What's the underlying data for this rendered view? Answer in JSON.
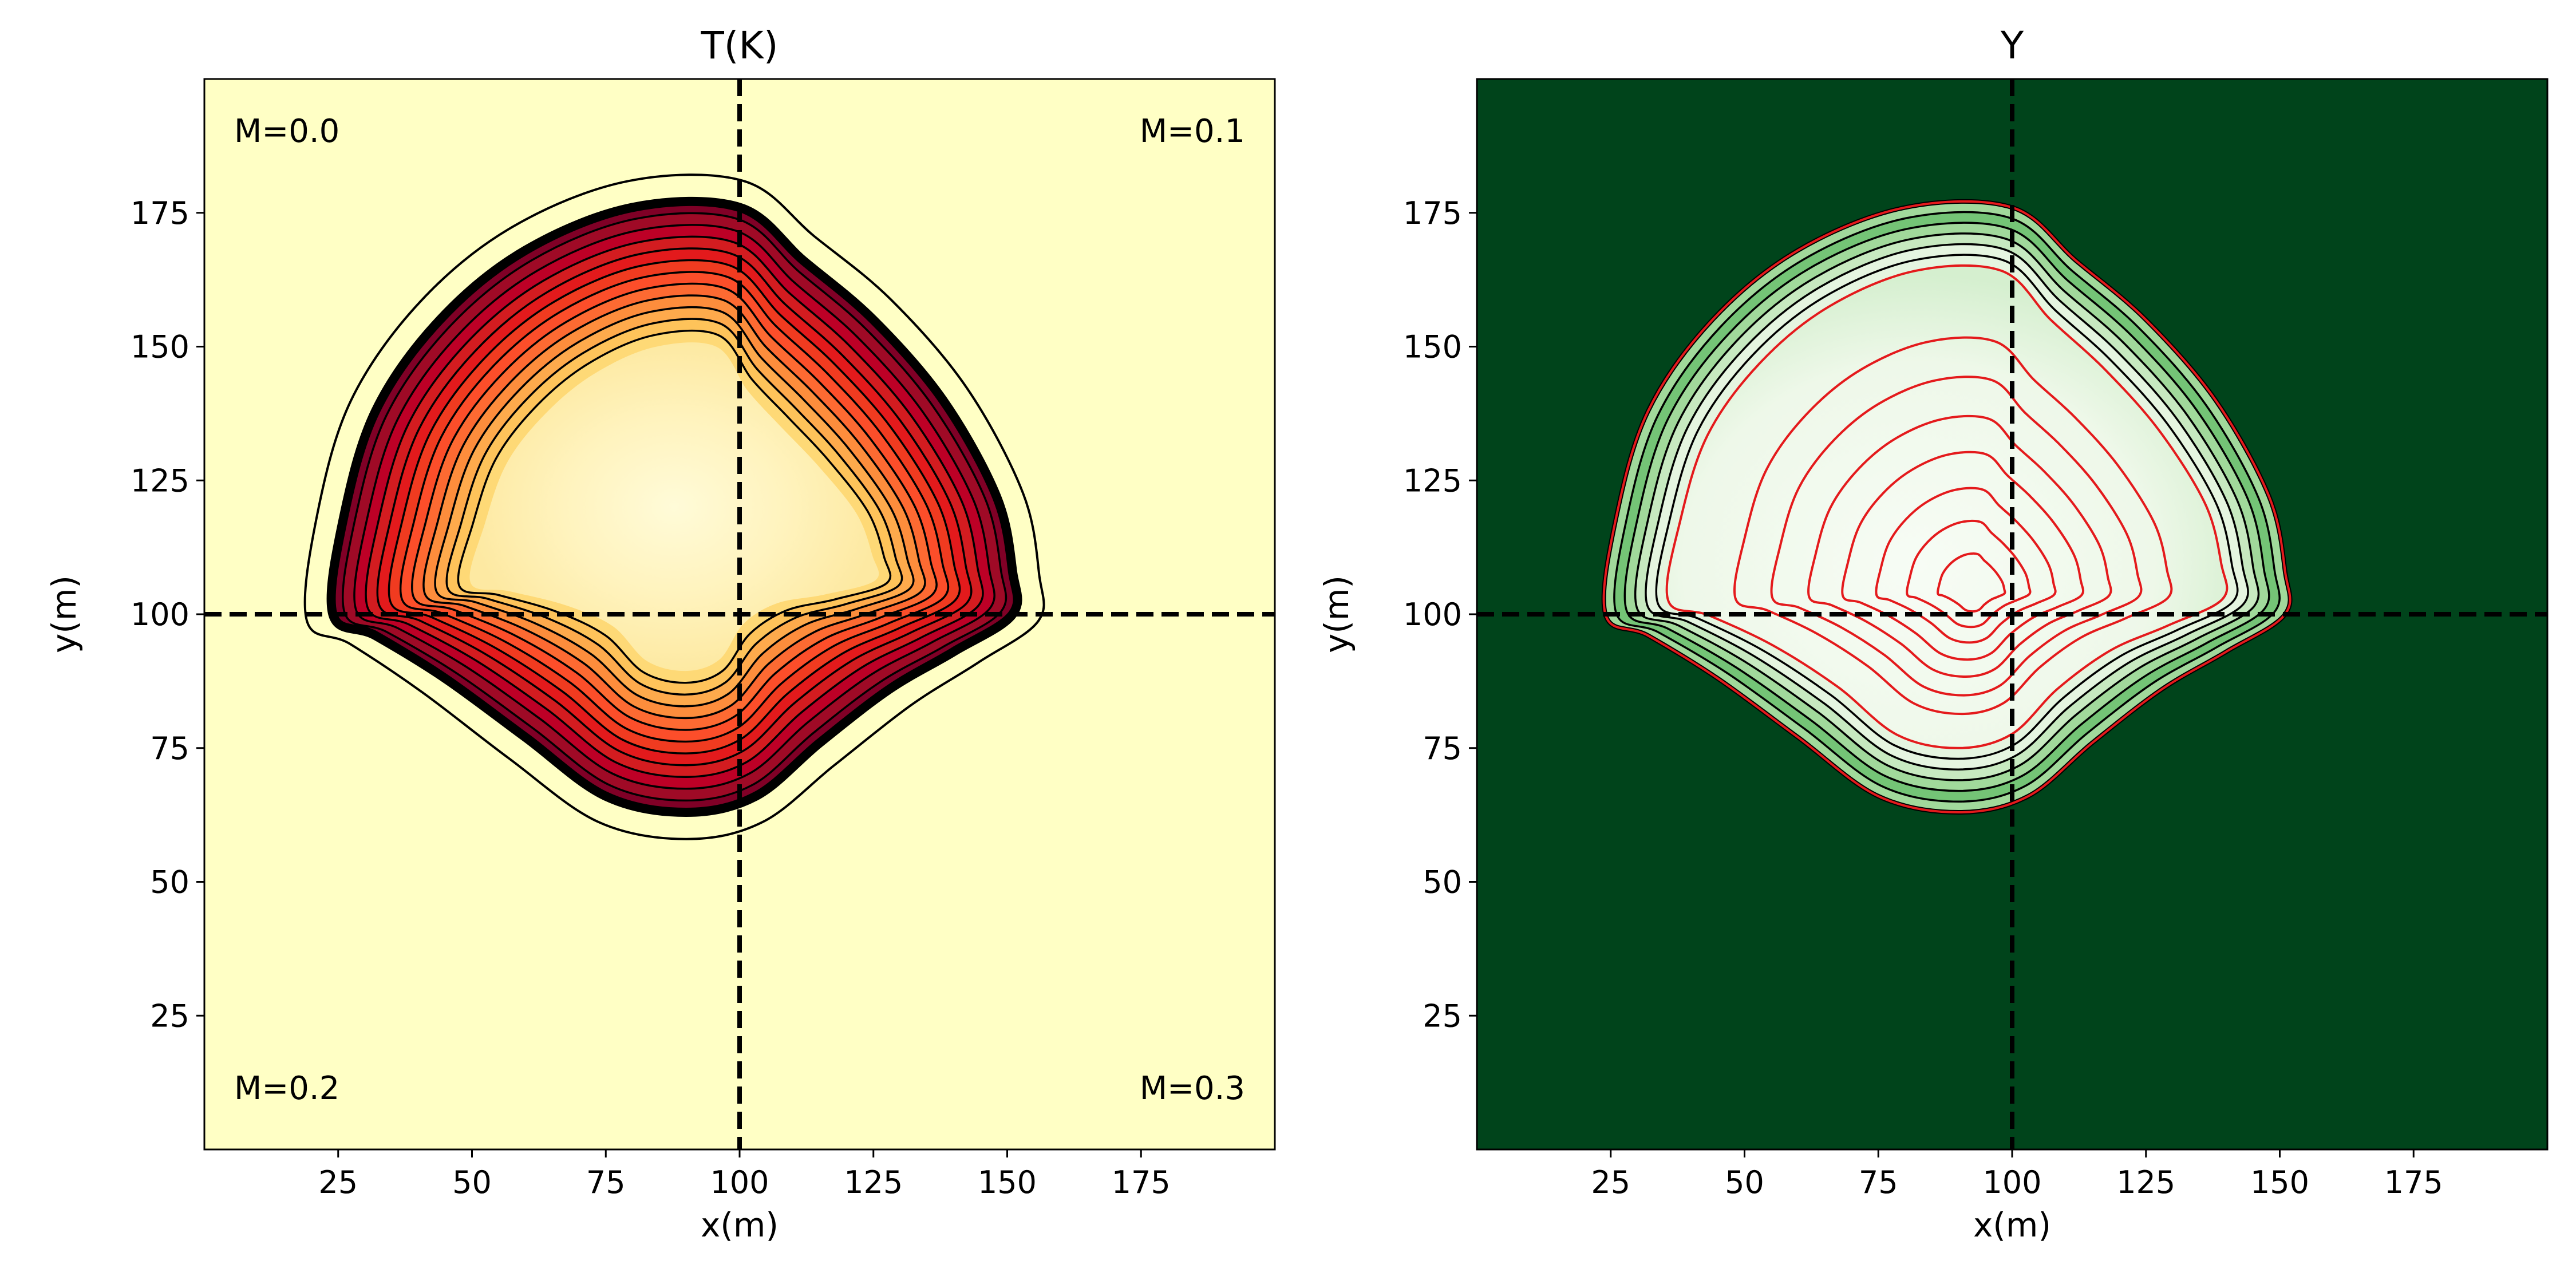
{
  "chart_data": [
    {
      "type": "heatmap",
      "title": "T(K)",
      "xlabel": "x(m)",
      "ylabel": "y(m)",
      "xlim": [
        0,
        200
      ],
      "ylim": [
        0,
        200
      ],
      "x_ticks": [
        25,
        50,
        75,
        100,
        125,
        150,
        175
      ],
      "y_ticks": [
        25,
        50,
        75,
        100,
        125,
        150,
        175
      ],
      "colormap": "YlOrRd",
      "background_color": "#ffffc5",
      "quadrant_lines": {
        "x": 100,
        "y": 100
      },
      "annotations": [
        "M=0.0",
        "M=0.1",
        "M=0.2",
        "M=0.3"
      ],
      "front_outline": [
        [
          24,
          100
        ],
        [
          26,
          118
        ],
        [
          32,
          138
        ],
        [
          44,
          155
        ],
        [
          60,
          168
        ],
        [
          80,
          176
        ],
        [
          100,
          176
        ],
        [
          112,
          166
        ],
        [
          125,
          155
        ],
        [
          138,
          140
        ],
        [
          148,
          122
        ],
        [
          151,
          108
        ],
        [
          151,
          100
        ],
        [
          140,
          93
        ],
        [
          128,
          86
        ],
        [
          115,
          76
        ],
        [
          103,
          66
        ],
        [
          90,
          63
        ],
        [
          75,
          66
        ],
        [
          60,
          77
        ],
        [
          45,
          88
        ],
        [
          32,
          96
        ]
      ],
      "outer_contour_offset_m": 5,
      "inner_contour_count": 8,
      "inner_contour_step_m": 2.2
    },
    {
      "type": "heatmap",
      "title": "Y",
      "xlabel": "x(m)",
      "ylabel": "y(m)",
      "xlim": [
        0,
        200
      ],
      "ylim": [
        0,
        200
      ],
      "x_ticks": [
        25,
        50,
        75,
        100,
        125,
        150,
        175
      ],
      "y_ticks": [
        25,
        50,
        75,
        100,
        125,
        150,
        175
      ],
      "colormap": "Greens",
      "background_color": "#00441b",
      "quadrant_lines": {
        "x": 100,
        "y": 100
      },
      "front_outline": [
        [
          24,
          100
        ],
        [
          26,
          118
        ],
        [
          32,
          138
        ],
        [
          44,
          155
        ],
        [
          60,
          168
        ],
        [
          80,
          176
        ],
        [
          100,
          176
        ],
        [
          112,
          166
        ],
        [
          125,
          155
        ],
        [
          138,
          140
        ],
        [
          148,
          122
        ],
        [
          151,
          108
        ],
        [
          151,
          100
        ],
        [
          140,
          93
        ],
        [
          128,
          86
        ],
        [
          115,
          76
        ],
        [
          103,
          66
        ],
        [
          90,
          63
        ],
        [
          75,
          66
        ],
        [
          60,
          77
        ],
        [
          45,
          88
        ],
        [
          32,
          96
        ]
      ],
      "band_contour_count": 5,
      "band_contour_step_m": 2,
      "red_contour_center": [
        93,
        104
      ],
      "red_contour_fractions": [
        0.78,
        0.66,
        0.54,
        0.43,
        0.32,
        0.22,
        0.12
      ]
    }
  ]
}
